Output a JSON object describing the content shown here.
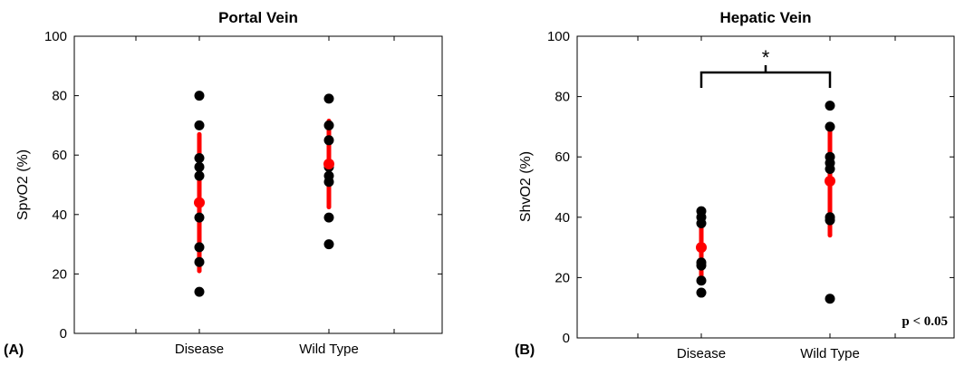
{
  "chart_data": [
    {
      "type": "scatter",
      "panel_label": "(A)",
      "title": "Portal Vein",
      "ylabel": "SpvO2 (%)",
      "xlabel": "",
      "ylim": [
        0,
        100
      ],
      "yticks": [
        "0",
        "20",
        "40",
        "60",
        "80",
        "100"
      ],
      "categories": [
        "Disease",
        "Wild Type"
      ],
      "points": [
        [
          80,
          70,
          59,
          56,
          53,
          39,
          29,
          24,
          14
        ],
        [
          79,
          70,
          65,
          56,
          53,
          51,
          39,
          30
        ]
      ],
      "mean": [
        44,
        57
      ],
      "sd": [
        23,
        14.5
      ],
      "mean_color": "#ff0000",
      "point_color": "#000000",
      "significance": null,
      "pvalue_text": ""
    },
    {
      "type": "scatter",
      "panel_label": "(B)",
      "title": "Hepatic Vein",
      "ylabel": "ShvO2 (%)",
      "xlabel": "",
      "ylim": [
        0,
        100
      ],
      "yticks": [
        "0",
        "20",
        "40",
        "60",
        "80",
        "100"
      ],
      "categories": [
        "Disease",
        "Wild Type"
      ],
      "points": [
        [
          42,
          40,
          38,
          25,
          24,
          19,
          15
        ],
        [
          77,
          70,
          60,
          58,
          56,
          40,
          39,
          13
        ]
      ],
      "mean": [
        30,
        52
      ],
      "sd": [
        11,
        18
      ],
      "mean_color": "#ff0000",
      "point_color": "#000000",
      "significance": {
        "marker": "*",
        "between": [
          0,
          1
        ],
        "bracket_y": 88
      },
      "pvalue_text": "p < 0.05"
    }
  ]
}
